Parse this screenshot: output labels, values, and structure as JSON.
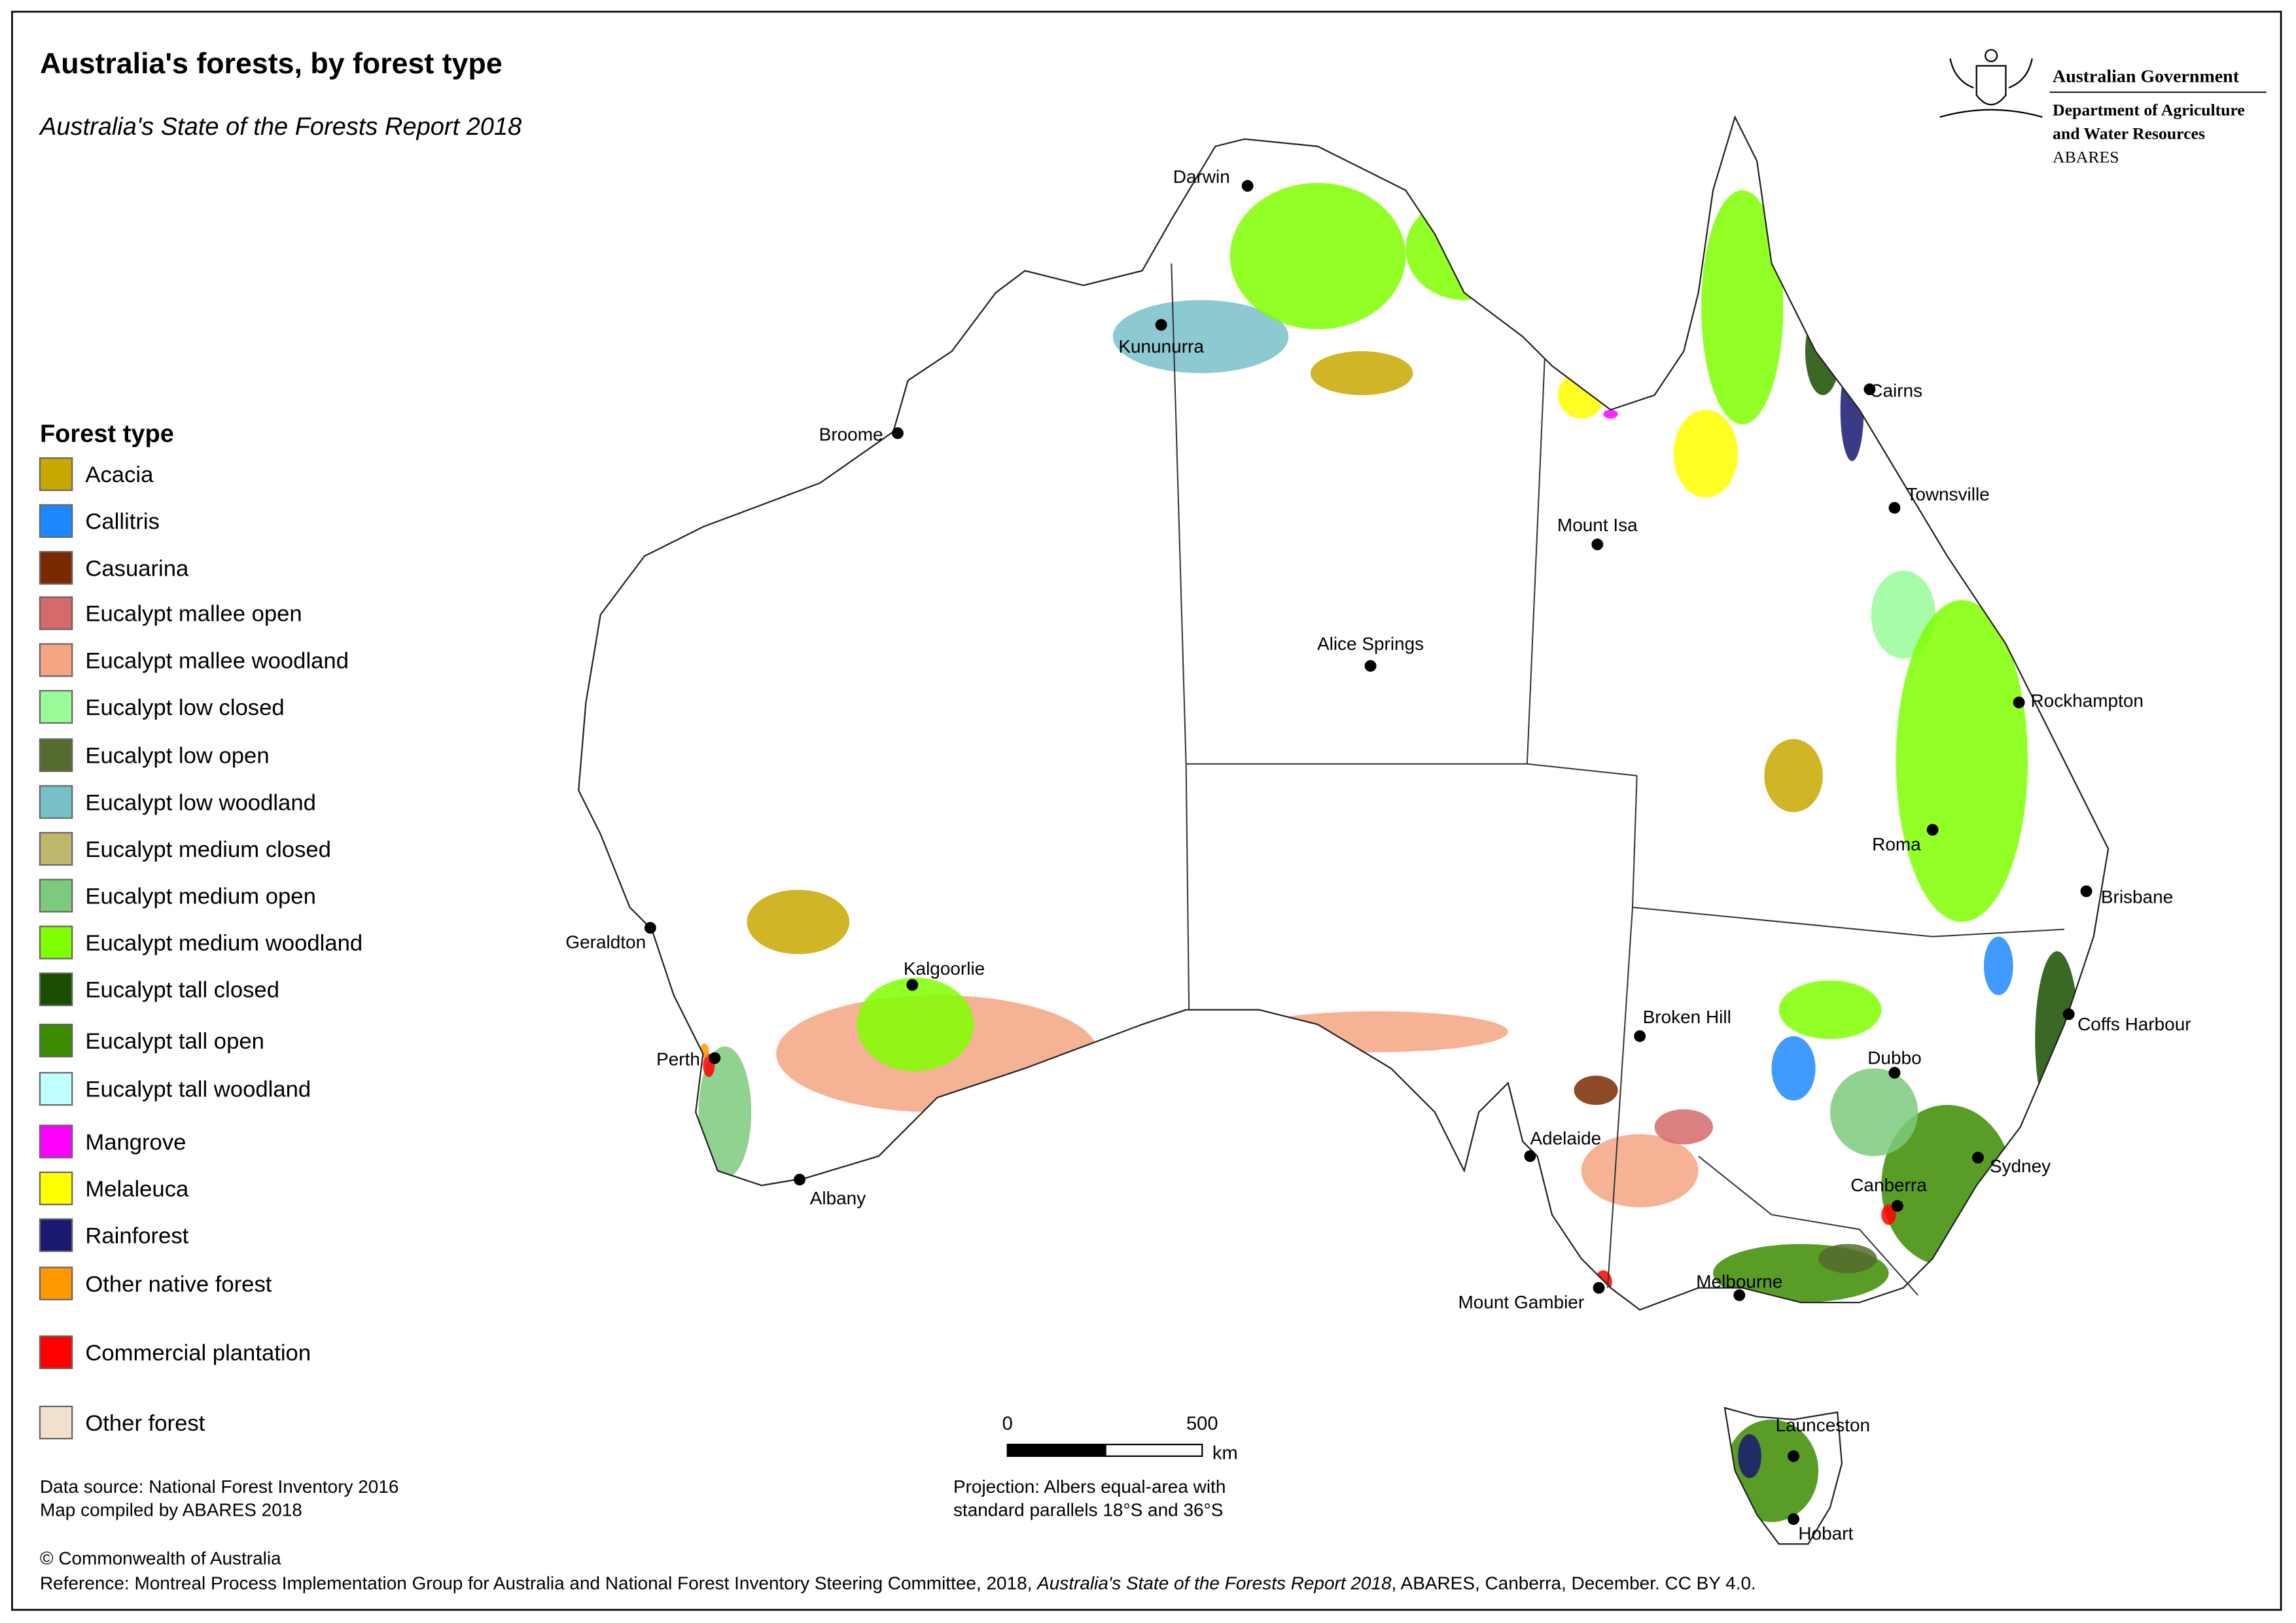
{
  "title": "Australia's forests, by forest type",
  "subtitle": "Australia's State of the Forests Report 2018",
  "logo": {
    "line1": "Australian Government",
    "line2": "Department of Agriculture",
    "line3": "and Water Resources",
    "line4": "ABARES"
  },
  "legend": {
    "title": "Forest type",
    "items": [
      {
        "name": "Acacia",
        "color": "#c8a800"
      },
      {
        "name": "Callitris",
        "color": "#1e88ff"
      },
      {
        "name": "Casuarina",
        "color": "#7a2a00"
      },
      {
        "name": "Eucalypt mallee open",
        "color": "#d46a6a"
      },
      {
        "name": "Eucalypt mallee woodland",
        "color": "#f4a582"
      },
      {
        "name": "Eucalypt low closed",
        "color": "#98fb98"
      },
      {
        "name": "Eucalypt low open",
        "color": "#556b2f"
      },
      {
        "name": "Eucalypt low woodland",
        "color": "#78c0c8"
      },
      {
        "name": "Eucalypt medium closed",
        "color": "#bdb76b"
      },
      {
        "name": "Eucalypt medium open",
        "color": "#7cca7c"
      },
      {
        "name": "Eucalypt medium woodland",
        "color": "#7fff00"
      },
      {
        "name": "Eucalypt tall closed",
        "color": "#1a4d00"
      },
      {
        "name": "Eucalypt tall open",
        "color": "#3c8c00"
      },
      {
        "name": "Eucalypt tall woodland",
        "color": "#c0ffff"
      },
      {
        "name": "Mangrove",
        "color": "#ff00ff"
      },
      {
        "name": "Melaleuca",
        "color": "#ffff00"
      },
      {
        "name": "Rainforest",
        "color": "#191970"
      },
      {
        "name": "Other native forest",
        "color": "#ff9900"
      },
      {
        "name": "Commercial plantation",
        "color": "#ff0000"
      },
      {
        "name": "Other forest",
        "color": "#f0e0cc"
      }
    ]
  },
  "places": [
    "Darwin",
    "Kununurra",
    "Broome",
    "Mount Isa",
    "Alice Springs",
    "Cairns",
    "Townsville",
    "Rockhampton",
    "Roma",
    "Brisbane",
    "Coffs Harbour",
    "Dubbo",
    "Sydney",
    "Canberra",
    "Melbourne",
    "Mount Gambier",
    "Adelaide",
    "Broken Hill",
    "Geraldton",
    "Kalgoorlie",
    "Perth",
    "Albany",
    "Launceston",
    "Hobart"
  ],
  "scale_bar": {
    "start": 0,
    "end": 500,
    "unit": "km"
  },
  "projection": [
    "Projection: Albers equal-area with",
    "standard parallels 18°S and 36°S"
  ],
  "data_source": [
    "Data source: National Forest Inventory 2016",
    "Map compiled by ABARES 2018"
  ],
  "copyright": "© Commonwealth of Australia",
  "reference": {
    "text": "Reference: Montreal Process Implementation Group for Australia and National Forest Inventory Steering Committee, 2018, ",
    "title": "Australia's State of the Forests Report 2018",
    "tail": ", ABARES, Canberra, December. CC BY 4.0."
  }
}
